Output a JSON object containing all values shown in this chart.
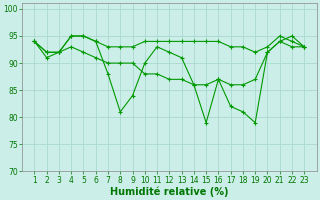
{
  "xlabel": "Humidité relative (%)",
  "xlim": [
    0,
    24
  ],
  "ylim": [
    70,
    101
  ],
  "yticks": [
    70,
    75,
    80,
    85,
    90,
    95,
    100
  ],
  "xticks": [
    1,
    2,
    3,
    4,
    5,
    6,
    7,
    8,
    9,
    10,
    11,
    12,
    13,
    14,
    15,
    16,
    17,
    18,
    19,
    20,
    21,
    22,
    23
  ],
  "background_color": "#cceee8",
  "grid_color": "#aad8d0",
  "line_color": "#009900",
  "series": [
    [
      94,
      91,
      92,
      95,
      95,
      94,
      88,
      81,
      84,
      90,
      93,
      92,
      91,
      86,
      79,
      87,
      82,
      81,
      79,
      92,
      94,
      95,
      93
    ],
    [
      94,
      92,
      92,
      95,
      95,
      94,
      93,
      93,
      93,
      94,
      94,
      94,
      94,
      94,
      94,
      94,
      93,
      93,
      92,
      93,
      95,
      94,
      93
    ],
    [
      94,
      92,
      92,
      93,
      92,
      91,
      90,
      90,
      90,
      88,
      88,
      87,
      87,
      86,
      86,
      87,
      86,
      86,
      87,
      92,
      94,
      93,
      93
    ]
  ],
  "xlabel_color": "#007700",
  "xlabel_fontsize": 7,
  "tick_fontsize": 5.5,
  "tick_color": "#007700"
}
